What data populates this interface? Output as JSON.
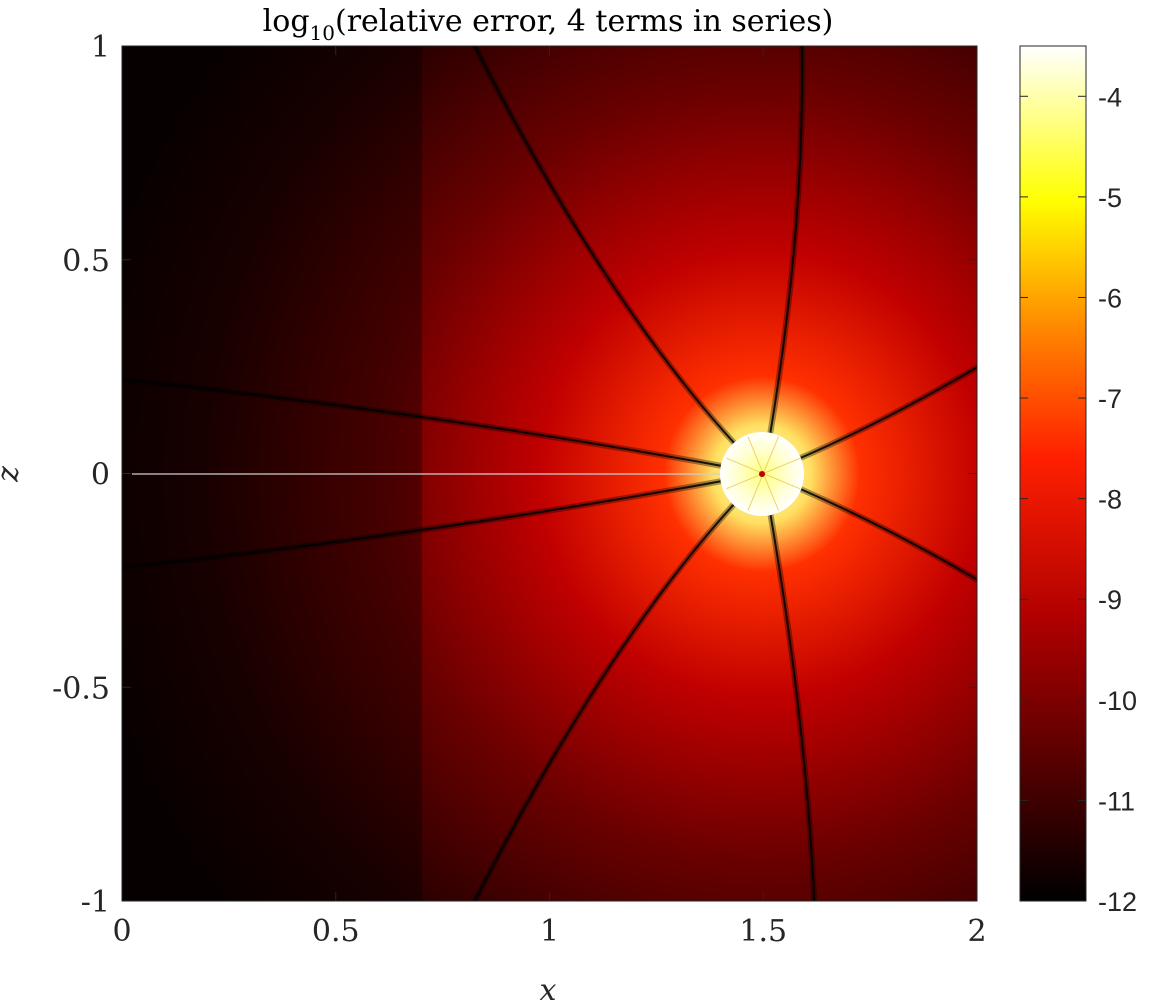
{
  "chart_data": {
    "type": "heatmap",
    "title": "log10(relative error, 4 terms in series)",
    "title_parts": {
      "base": "log",
      "subscript": "10",
      "rest": "(relative error, 4 terms in series)"
    },
    "xlabel": "x",
    "ylabel": "z",
    "xlim": [
      0,
      2
    ],
    "ylim": [
      -1,
      1
    ],
    "x_ticks": [
      0,
      0.5,
      1,
      1.5,
      2
    ],
    "x_tick_labels": [
      "0",
      "0.5",
      "1",
      "1.5",
      "2"
    ],
    "y_ticks": [
      1,
      0.5,
      0,
      -0.5,
      -1
    ],
    "y_tick_labels": [
      "1",
      "0.5",
      "0",
      "-0.5",
      "-1"
    ],
    "colormap": "hot",
    "colorbar": {
      "range": [
        -12,
        -3.5
      ],
      "ticks": [
        -4,
        -5,
        -6,
        -7,
        -8,
        -9,
        -10,
        -11,
        -12
      ],
      "tick_labels": [
        "-4",
        "-5",
        "-6",
        "-7",
        "-8",
        "-9",
        "-10",
        "-11",
        "-12"
      ]
    },
    "singular_point": {
      "x": 1.5,
      "z": 0
    },
    "excluded_disk_radius": 0.1,
    "grid": false,
    "colors": {
      "dark": "#050000",
      "mid_red": "#b00000",
      "bright": "#ff2000",
      "hot": "#ffffc8",
      "white": "#ffffff"
    }
  }
}
